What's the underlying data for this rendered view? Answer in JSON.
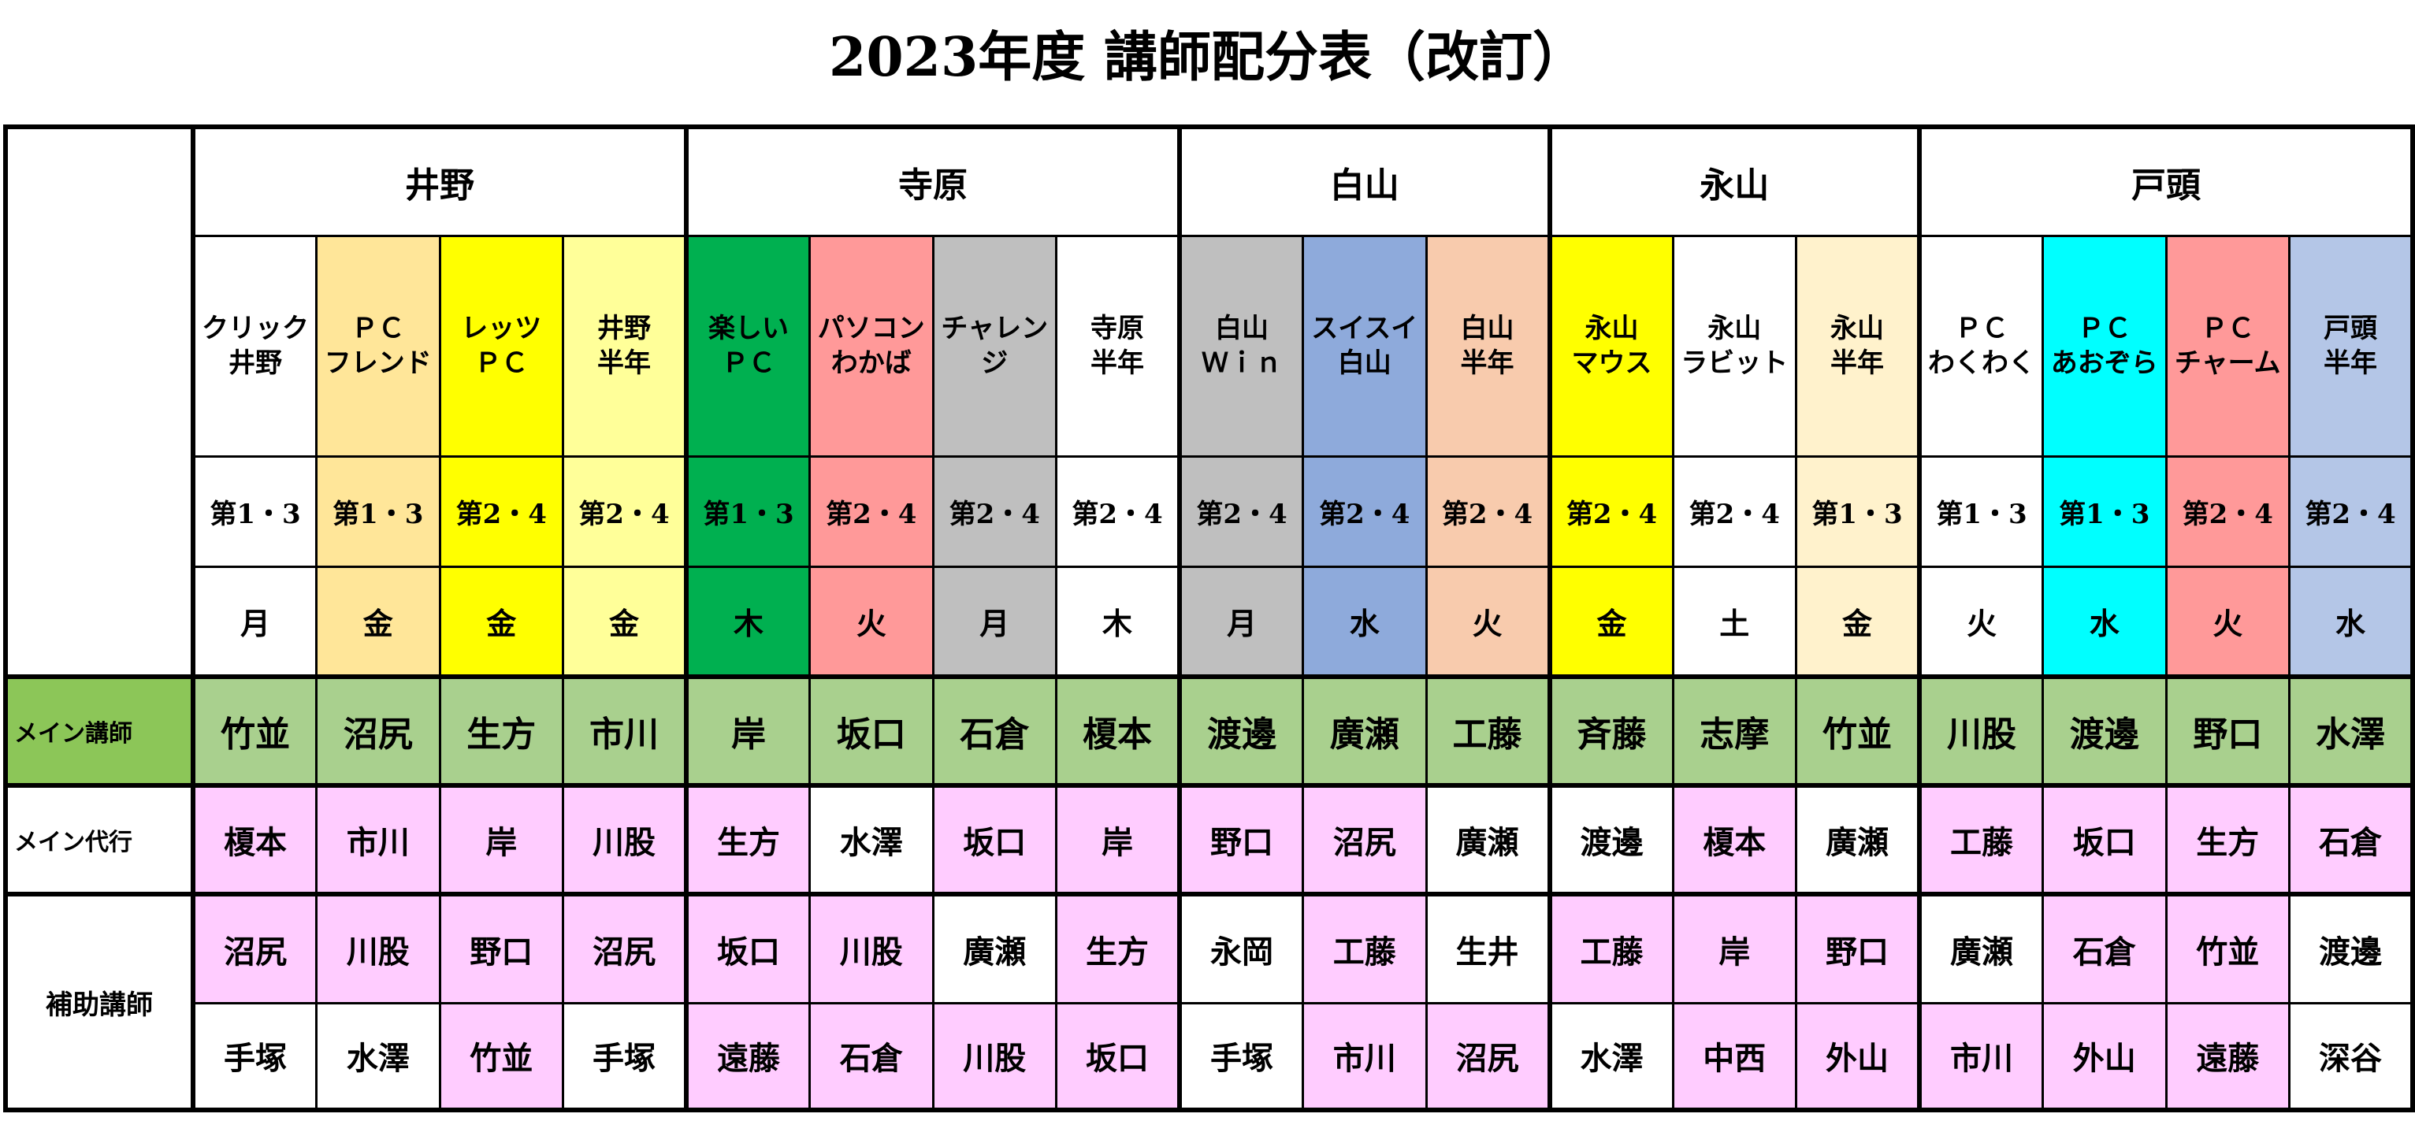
{
  "title": "2023年度  講師配分表（改訂）",
  "colors": {
    "main_row": "#a9d08e",
    "main_label": "#8cc658",
    "pink": "#ffccff",
    "white": "#ffffff"
  },
  "branches": [
    {
      "name": "井野",
      "span": 4
    },
    {
      "name": "寺原",
      "span": 4
    },
    {
      "name": "白山",
      "span": 3
    },
    {
      "name": "永山",
      "span": 3
    },
    {
      "name": "戸頭",
      "span": 4
    }
  ],
  "row_labels": {
    "main": "メイン講師",
    "sub": "メイン代行",
    "assist": "補助講師"
  },
  "classes": [
    {
      "name": "クリック\n井野",
      "week": "第1・3",
      "day": "月",
      "color": "#ffffff",
      "main": "竹並",
      "sub": "榎本",
      "sub_color": "#ffccff",
      "a1": "沼尻",
      "a1_color": "#ffccff",
      "a2": "手塚",
      "a2_color": "#ffffff"
    },
    {
      "name": "ＰＣ\nフレンド",
      "week": "第1・3",
      "day": "金",
      "color": "#ffe699",
      "main": "沼尻",
      "sub": "市川",
      "sub_color": "#ffccff",
      "a1": "川股",
      "a1_color": "#ffccff",
      "a2": "水澤",
      "a2_color": "#ffffff"
    },
    {
      "name": "レッツ\nＰＣ",
      "week": "第2・4",
      "day": "金",
      "color": "#ffff00",
      "main": "生方",
      "sub": "岸",
      "sub_color": "#ffccff",
      "a1": "野口",
      "a1_color": "#ffccff",
      "a2": "竹並",
      "a2_color": "#ffccff"
    },
    {
      "name": "井野\n半年",
      "week": "第2・4",
      "day": "金",
      "color": "#ffff99",
      "main": "市川",
      "sub": "川股",
      "sub_color": "#ffccff",
      "a1": "沼尻",
      "a1_color": "#ffccff",
      "a2": "手塚",
      "a2_color": "#ffffff"
    },
    {
      "name": "楽しい\nＰＣ",
      "week": "第1・3",
      "day": "木",
      "color": "#00b050",
      "main": "岸",
      "sub": "生方",
      "sub_color": "#ffccff",
      "a1": "坂口",
      "a1_color": "#ffccff",
      "a2": "遠藤",
      "a2_color": "#ffccff"
    },
    {
      "name": "パソコン\nわかば",
      "week": "第2・4",
      "day": "火",
      "color": "#ff9999",
      "main": "坂口",
      "sub": "水澤",
      "sub_color": "#ffffff",
      "a1": "川股",
      "a1_color": "#ffccff",
      "a2": "石倉",
      "a2_color": "#ffccff"
    },
    {
      "name": "チャレン\nジ",
      "week": "第2・4",
      "day": "月",
      "color": "#bfbfbf",
      "main": "石倉",
      "sub": "坂口",
      "sub_color": "#ffccff",
      "a1": "廣瀬",
      "a1_color": "#ffffff",
      "a2": "川股",
      "a2_color": "#ffccff"
    },
    {
      "name": "寺原\n半年",
      "week": "第2・4",
      "day": "木",
      "color": "#ffffff",
      "main": "榎本",
      "sub": "岸",
      "sub_color": "#ffccff",
      "a1": "生方",
      "a1_color": "#ffccff",
      "a2": "坂口",
      "a2_color": "#ffccff"
    },
    {
      "name": "白山\nＷｉｎ",
      "week": "第2・4",
      "day": "月",
      "color": "#bfbfbf",
      "main": "渡邊",
      "sub": "野口",
      "sub_color": "#ffccff",
      "a1": "永岡",
      "a1_color": "#ffffff",
      "a2": "手塚",
      "a2_color": "#ffffff"
    },
    {
      "name": "スイスイ\n白山",
      "week": "第2・4",
      "day": "水",
      "color": "#8eaadb",
      "main": "廣瀬",
      "sub": "沼尻",
      "sub_color": "#ffccff",
      "a1": "工藤",
      "a1_color": "#ffccff",
      "a2": "市川",
      "a2_color": "#ffccff"
    },
    {
      "name": "白山\n半年",
      "week": "第2・4",
      "day": "火",
      "color": "#f8cbad",
      "main": "工藤",
      "sub": "廣瀬",
      "sub_color": "#ffffff",
      "a1": "生井",
      "a1_color": "#ffffff",
      "a2": "沼尻",
      "a2_color": "#ffccff"
    },
    {
      "name": "永山\nマウス",
      "week": "第2・4",
      "day": "金",
      "color": "#ffff00",
      "main": "斉藤",
      "sub": "渡邊",
      "sub_color": "#ffffff",
      "a1": "工藤",
      "a1_color": "#ffccff",
      "a2": "水澤",
      "a2_color": "#ffffff"
    },
    {
      "name": "永山\nラビット",
      "week": "第2・4",
      "day": "土",
      "color": "#ffffff",
      "main": "志摩",
      "sub": "榎本",
      "sub_color": "#ffccff",
      "a1": "岸",
      "a1_color": "#ffccff",
      "a2": "中西",
      "a2_color": "#ffccff"
    },
    {
      "name": "永山\n半年",
      "week": "第1・3",
      "day": "金",
      "color": "#fff2cc",
      "main": "竹並",
      "sub": "廣瀬",
      "sub_color": "#ffffff",
      "a1": "野口",
      "a1_color": "#ffccff",
      "a2": "外山",
      "a2_color": "#ffccff"
    },
    {
      "name": "ＰＣ\nわくわく",
      "week": "第1・3",
      "day": "火",
      "color": "#ffffff",
      "main": "川股",
      "sub": "工藤",
      "sub_color": "#ffccff",
      "a1": "廣瀬",
      "a1_color": "#ffffff",
      "a2": "市川",
      "a2_color": "#ffccff"
    },
    {
      "name": "ＰＣ\nあおぞら",
      "week": "第1・3",
      "day": "水",
      "color": "#00ffff",
      "main": "渡邊",
      "sub": "坂口",
      "sub_color": "#ffccff",
      "a1": "石倉",
      "a1_color": "#ffccff",
      "a2": "外山",
      "a2_color": "#ffccff"
    },
    {
      "name": "ＰＣ\nチャーム",
      "week": "第2・4",
      "day": "火",
      "color": "#ff9999",
      "main": "野口",
      "sub": "生方",
      "sub_color": "#ffccff",
      "a1": "竹並",
      "a1_color": "#ffccff",
      "a2": "遠藤",
      "a2_color": "#ffccff"
    },
    {
      "name": "戸頭\n半年",
      "week": "第2・4",
      "day": "水",
      "color": "#b4c6e7",
      "main": "水澤",
      "sub": "石倉",
      "sub_color": "#ffccff",
      "a1": "渡邊",
      "a1_color": "#ffffff",
      "a2": "深谷",
      "a2_color": "#ffffff"
    }
  ]
}
